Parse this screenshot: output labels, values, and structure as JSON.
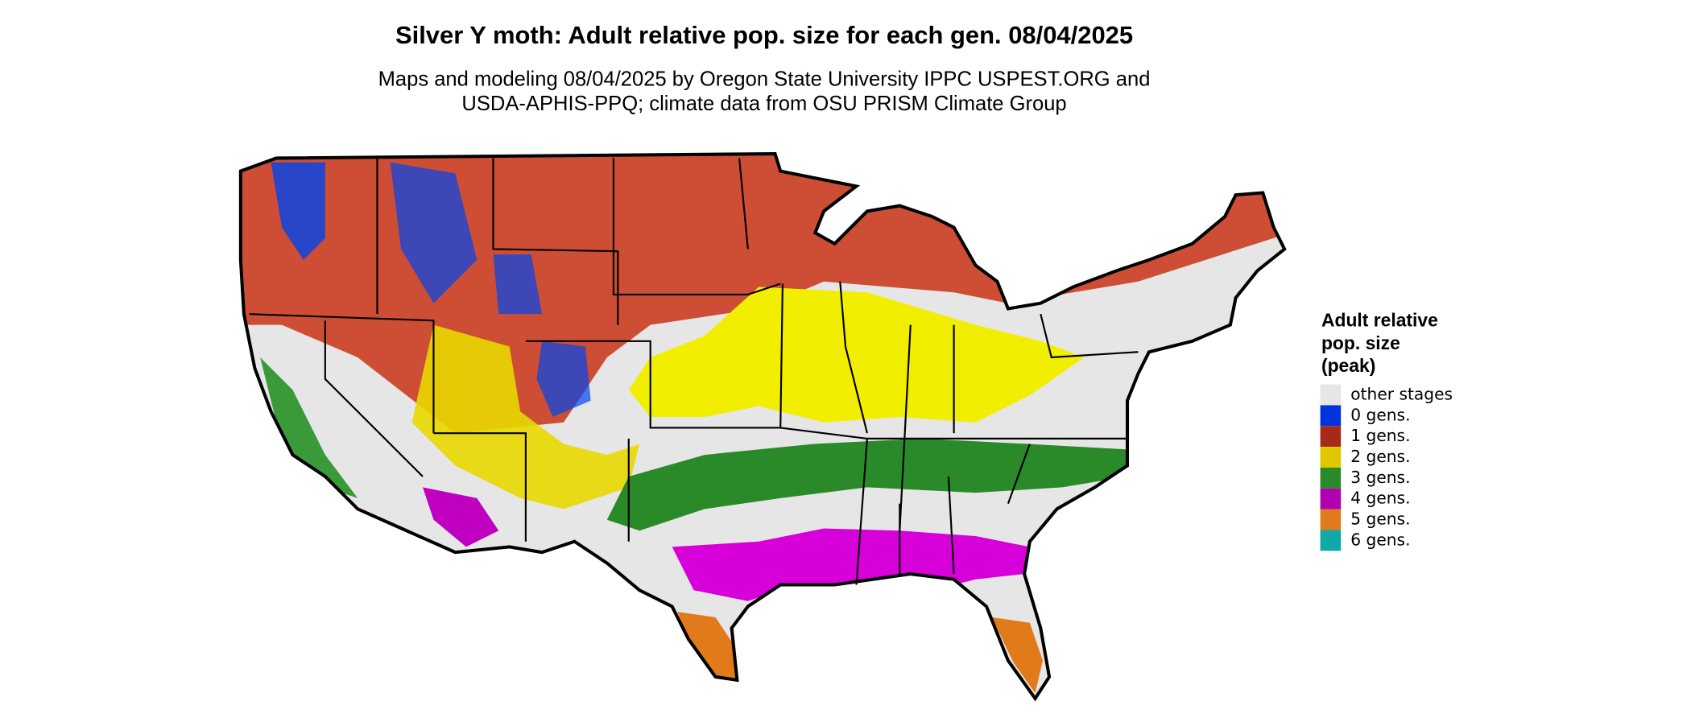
{
  "title": "Silver Y moth: Adult relative pop. size for each gen. 08/04/2025",
  "subtitle": [
    "Maps and modeling 08/04/2025 by Oregon State University IPPC USPEST.ORG and",
    "USDA-APHIS-PPQ; climate data from OSU PRISM Climate Group"
  ],
  "legend": {
    "title": [
      "Adult relative",
      "pop. size",
      "(peak)"
    ],
    "items": [
      {
        "label": "other stages",
        "color": "#e6e6e6"
      },
      {
        "label": "0 gens.",
        "color": "#0033dd"
      },
      {
        "label": "1 gens.",
        "color": "#a62a17"
      },
      {
        "label": "2 gens.",
        "color": "#e0c800"
      },
      {
        "label": "3 gens.",
        "color": "#2a8a2a"
      },
      {
        "label": "4 gens.",
        "color": "#b000b0"
      },
      {
        "label": "5 gens.",
        "color": "#e07a1a"
      },
      {
        "label": "6 gens.",
        "color": "#10a8a8"
      }
    ]
  }
}
